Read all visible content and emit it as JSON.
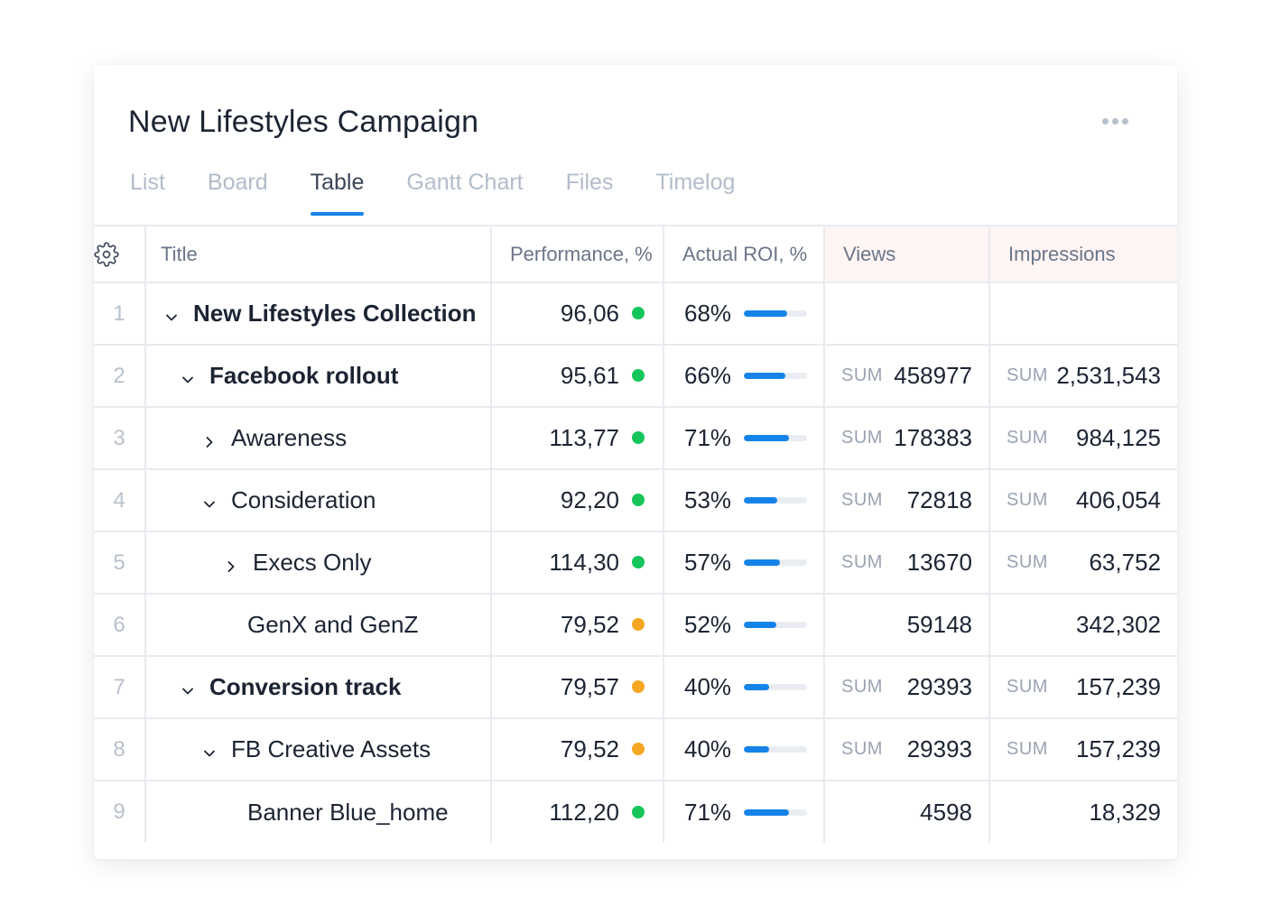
{
  "header": {
    "title": "New Lifestyles Campaign",
    "more_icon": "more-horizontal-icon"
  },
  "tabs": [
    {
      "label": "List",
      "active": false
    },
    {
      "label": "Board",
      "active": false
    },
    {
      "label": "Table",
      "active": true
    },
    {
      "label": "Gantt Chart",
      "active": false
    },
    {
      "label": "Files",
      "active": false
    },
    {
      "label": "Timelog",
      "active": false
    }
  ],
  "columns": {
    "settings_icon": "gear-icon",
    "title": "Title",
    "performance": "Performance, %",
    "roi": "Actual ROI, %",
    "views": "Views",
    "impressions": "Impressions"
  },
  "sum_label": "SUM",
  "colors": {
    "accent": "#1683e8",
    "status_green": "#16c65b",
    "status_orange": "#f5a623",
    "highlight_header": "#fff5f5"
  },
  "rows": [
    {
      "num": "1",
      "title": "New Lifestyles Collection",
      "level": 0,
      "chevron": "down",
      "bold": true,
      "performance": "96,06",
      "status": "green",
      "roi": "68%",
      "roi_value": 68,
      "views": "",
      "views_sum": false,
      "impressions": "",
      "impressions_sum": false
    },
    {
      "num": "2",
      "title": "Facebook rollout",
      "level": 1,
      "chevron": "down",
      "bold": true,
      "performance": "95,61",
      "status": "green",
      "roi": "66%",
      "roi_value": 66,
      "views": "458977",
      "views_sum": true,
      "impressions": "2,531,543",
      "impressions_sum": true
    },
    {
      "num": "3",
      "title": "Awareness",
      "level": 2,
      "chevron": "right",
      "bold": false,
      "performance": "113,77",
      "status": "green",
      "roi": "71%",
      "roi_value": 71,
      "views": "178383",
      "views_sum": true,
      "impressions": "984,125",
      "impressions_sum": true
    },
    {
      "num": "4",
      "title": "Consideration",
      "level": 2,
      "chevron": "down",
      "bold": false,
      "performance": "92,20",
      "status": "green",
      "roi": "53%",
      "roi_value": 53,
      "views": "72818",
      "views_sum": true,
      "impressions": "406,054",
      "impressions_sum": true
    },
    {
      "num": "5",
      "title": "Execs Only",
      "level": 3,
      "chevron": "right",
      "bold": false,
      "performance": "114,30",
      "status": "green",
      "roi": "57%",
      "roi_value": 57,
      "views": "13670",
      "views_sum": true,
      "impressions": "63,752",
      "impressions_sum": true
    },
    {
      "num": "6",
      "title": "GenX and GenZ",
      "level": 3,
      "chevron": "none",
      "bold": false,
      "performance": "79,52",
      "status": "orange",
      "roi": "52%",
      "roi_value": 52,
      "views": "59148",
      "views_sum": false,
      "impressions": "342,302",
      "impressions_sum": false
    },
    {
      "num": "7",
      "title": "Conversion track",
      "level": 1,
      "chevron": "down",
      "bold": true,
      "performance": "79,57",
      "status": "orange",
      "roi": "40%",
      "roi_value": 40,
      "views": "29393",
      "views_sum": true,
      "impressions": "157,239",
      "impressions_sum": true
    },
    {
      "num": "8",
      "title": "FB Creative Assets",
      "level": 2,
      "chevron": "down",
      "bold": false,
      "performance": "79,52",
      "status": "orange",
      "roi": "40%",
      "roi_value": 40,
      "views": "29393",
      "views_sum": true,
      "impressions": "157,239",
      "impressions_sum": true
    },
    {
      "num": "9",
      "title": "Banner Blue_home",
      "level": 3,
      "chevron": "none",
      "bold": false,
      "performance": "112,20",
      "status": "green",
      "roi": "71%",
      "roi_value": 71,
      "views": "4598",
      "views_sum": false,
      "impressions": "18,329",
      "impressions_sum": false
    }
  ]
}
